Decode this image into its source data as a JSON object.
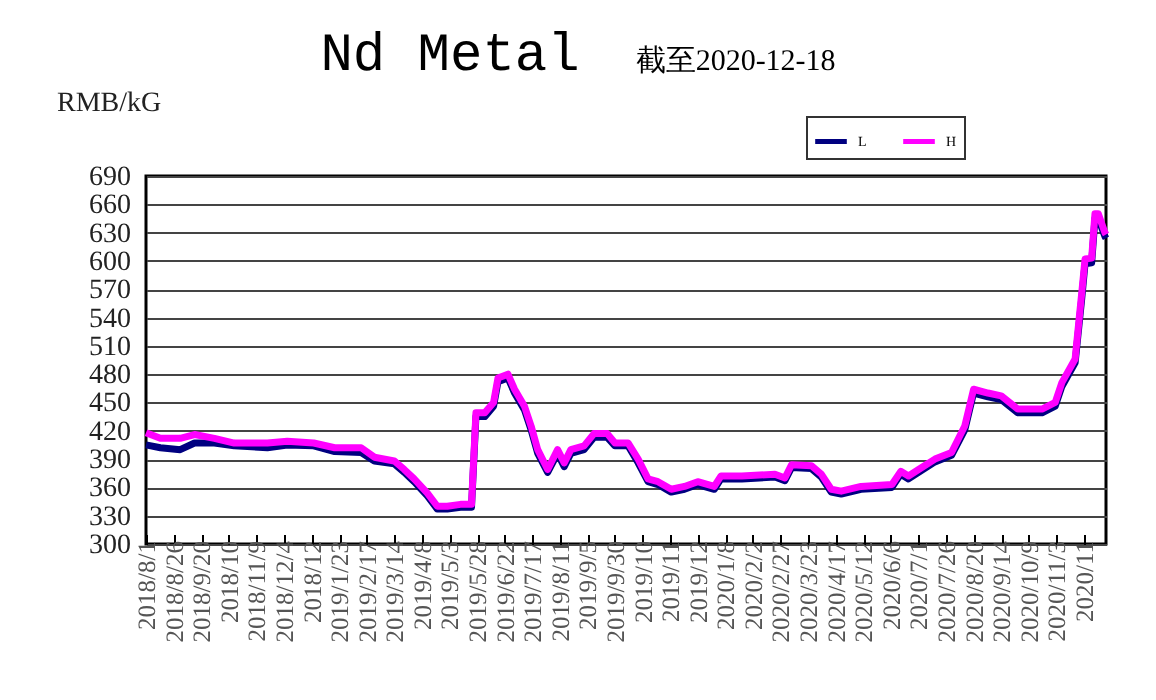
{
  "chart_data": {
    "type": "line",
    "title": "Nd Metal",
    "subtitle": "截至2020-12-18",
    "ylabel": "RMB/kG",
    "x": [
      "2018-08-01",
      "2018-08-14",
      "2018-09-01",
      "2018-09-14",
      "2018-10-02",
      "2018-10-20",
      "2018-11-19",
      "2018-12-07",
      "2018-12-31",
      "2019-01-19",
      "2019-02-12",
      "2019-02-24",
      "2019-03-14",
      "2019-03-23",
      "2019-04-01",
      "2019-04-13",
      "2019-04-22",
      "2019-05-01",
      "2019-05-13",
      "2019-05-23",
      "2019-05-27",
      "2019-06-04",
      "2019-06-12",
      "2019-06-16",
      "2019-06-25",
      "2019-07-01",
      "2019-07-10",
      "2019-07-16",
      "2019-07-22",
      "2019-07-31",
      "2019-08-09",
      "2019-08-15",
      "2019-08-21",
      "2019-09-02",
      "2019-09-11",
      "2019-09-23",
      "2019-09-30",
      "2019-10-12",
      "2019-10-21",
      "2019-10-30",
      "2019-11-08",
      "2019-11-20",
      "2019-12-02",
      "2019-12-14",
      "2019-12-29",
      "2020-01-04",
      "2020-01-23",
      "2020-02-22",
      "2020-03-02",
      "2020-03-08",
      "2020-03-26",
      "2020-04-04",
      "2020-04-13",
      "2020-04-22",
      "2020-05-10",
      "2020-06-07",
      "2020-06-15",
      "2020-06-22",
      "2020-07-04",
      "2020-07-16",
      "2020-07-31",
      "2020-08-12",
      "2020-08-20",
      "2020-09-02",
      "2020-09-14",
      "2020-09-29",
      "2020-10-21",
      "2020-11-02",
      "2020-11-08",
      "2020-11-20",
      "2020-11-26",
      "2020-11-29",
      "2020-12-05",
      "2020-12-08",
      "2020-12-11",
      "2020-12-17",
      "2020-12-18"
    ],
    "series": [
      {
        "name": "L",
        "color": "#000080",
        "values": [
          405,
          402,
          400,
          407,
          407,
          404,
          402,
          405,
          404,
          398,
          397,
          388,
          385,
          376,
          366,
          351,
          337,
          337,
          339,
          339,
          435,
          435,
          446,
          472,
          476,
          460,
          442,
          421,
          396,
          376,
          396,
          382,
          396,
          400,
          413,
          413,
          404,
          404,
          386,
          366,
          363,
          355,
          358,
          363,
          358,
          369,
          369,
          371,
          367,
          381,
          380,
          371,
          355,
          353,
          358,
          360,
          374,
          369,
          378,
          387,
          394,
          421,
          460,
          456,
          453,
          439,
          439,
          446,
          467,
          492,
          560,
          597,
          598,
          645,
          645,
          626,
          624
        ]
      },
      {
        "name": "H",
        "color": "#ff00ff",
        "values": [
          418,
          412,
          412,
          416,
          412,
          407,
          407,
          409,
          407,
          402,
          402,
          392,
          388,
          379,
          369,
          354,
          340,
          340,
          342,
          342,
          439,
          439,
          450,
          476,
          480,
          464,
          446,
          425,
          400,
          379,
          400,
          386,
          400,
          404,
          417,
          417,
          407,
          407,
          390,
          369,
          366,
          358,
          361,
          366,
          361,
          372,
          372,
          374,
          370,
          384,
          383,
          374,
          358,
          356,
          361,
          363,
          377,
          372,
          381,
          390,
          397,
          425,
          464,
          460,
          457,
          443,
          443,
          450,
          471,
          496,
          566,
          602,
          603,
          650,
          650,
          630,
          628
        ]
      }
    ],
    "xlim": [
      "2018-08-01",
      "2020-12-18"
    ],
    "xticks": [
      {
        "value": "2018-08-01",
        "label": "2018/8/1"
      },
      {
        "value": "2018-08-26",
        "label": "2018/8/26"
      },
      {
        "value": "2018-09-20",
        "label": "2018/9/20"
      },
      {
        "value": "2018-10-15",
        "label": "2018/10"
      },
      {
        "value": "2018-11-09",
        "label": "2018/11/9"
      },
      {
        "value": "2018-12-04",
        "label": "2018/12/4"
      },
      {
        "value": "2018-12-29",
        "label": "2018/12"
      },
      {
        "value": "2019-01-23",
        "label": "2019/1/23"
      },
      {
        "value": "2019-02-17",
        "label": "2019/2/17"
      },
      {
        "value": "2019-03-14",
        "label": "2019/3/14"
      },
      {
        "value": "2019-04-08",
        "label": "2019/4/8"
      },
      {
        "value": "2019-05-03",
        "label": "2019/5/3"
      },
      {
        "value": "2019-05-28",
        "label": "2019/5/28"
      },
      {
        "value": "2019-06-22",
        "label": "2019/6/22"
      },
      {
        "value": "2019-07-17",
        "label": "2019/7/17"
      },
      {
        "value": "2019-08-11",
        "label": "2019/8/11"
      },
      {
        "value": "2019-09-05",
        "label": "2019/9/5"
      },
      {
        "value": "2019-09-30",
        "label": "2019/9/30"
      },
      {
        "value": "2019-10-25",
        "label": "2019/10"
      },
      {
        "value": "2019-11-19",
        "label": "2019/11"
      },
      {
        "value": "2019-12-14",
        "label": "2019/12"
      },
      {
        "value": "2020-01-08",
        "label": "2020/1/8"
      },
      {
        "value": "2020-02-02",
        "label": "2020/2/2"
      },
      {
        "value": "2020-02-27",
        "label": "2020/2/27"
      },
      {
        "value": "2020-03-23",
        "label": "2020/3/23"
      },
      {
        "value": "2020-04-17",
        "label": "2020/4/17"
      },
      {
        "value": "2020-05-12",
        "label": "2020/5/12"
      },
      {
        "value": "2020-06-06",
        "label": "2020/6/6"
      },
      {
        "value": "2020-07-01",
        "label": "2020/7/1"
      },
      {
        "value": "2020-07-26",
        "label": "2020/7/26"
      },
      {
        "value": "2020-08-20",
        "label": "2020/8/20"
      },
      {
        "value": "2020-09-14",
        "label": "2020/9/14"
      },
      {
        "value": "2020-10-09",
        "label": "2020/10/9"
      },
      {
        "value": "2020-11-03",
        "label": "2020/11/3"
      },
      {
        "value": "2020-11-28",
        "label": "2020/11"
      }
    ],
    "ylim": [
      300,
      690
    ],
    "yticks": [
      300,
      330,
      360,
      390,
      420,
      450,
      480,
      510,
      540,
      570,
      600,
      630,
      660,
      690
    ],
    "grid": "y",
    "legend": "top right"
  }
}
